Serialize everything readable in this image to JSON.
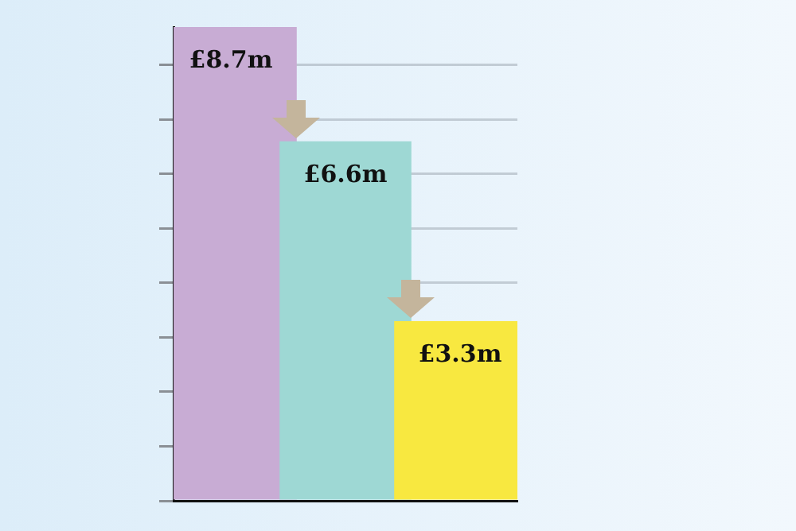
{
  "chart_data": {
    "type": "bar",
    "categories": [
      null,
      null,
      null
    ],
    "values": [
      8.7,
      6.6,
      3.3
    ],
    "colors": [
      "#c8acd4",
      "#9ed8d4",
      "#f8e840"
    ],
    "value_labels": [
      "£8.7m",
      "£6.6m",
      "£3.3m"
    ],
    "ylim": [
      0,
      8.7
    ],
    "yticks": [
      {
        "value": 0,
        "label": null
      },
      {
        "value": 1,
        "label": null
      },
      {
        "value": 2,
        "label": null
      },
      {
        "value": 3,
        "label": null
      },
      {
        "value": 4,
        "label": null
      },
      {
        "value": 5,
        "label": null
      },
      {
        "value": 6,
        "label": null
      },
      {
        "value": 7,
        "label": null
      },
      {
        "value": 8,
        "label": null
      }
    ],
    "tick_labels": false,
    "grid": "y",
    "legend": false
  }
}
